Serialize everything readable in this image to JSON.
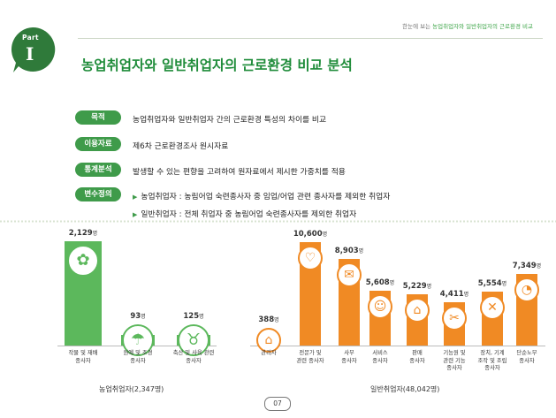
{
  "header": {
    "running_head_prefix": "한눈에 보는 ",
    "running_head_accent": "농업취업자와 일반취업자의 근로환경 비교",
    "part_label": "Part",
    "part_number": "I",
    "title": "농업취업자와 일반취업자의 근로환경 비교 분석"
  },
  "info_rows": [
    {
      "label": "목적",
      "text": "농업취업자와 일반취업자 간의 근로환경 특성의 차이를 비교"
    },
    {
      "label": "이용자료",
      "text": "제6차 근로환경조사 원시자료"
    },
    {
      "label": "통계분석",
      "text": "발생할 수 있는 편향을 고려하여 원자료에서 제시한 가중치를 적용"
    },
    {
      "label": "변수정의",
      "lines": [
        "농업취업자 : 농림어업 숙련종사자 중 임업/어업 관련 종사자를 제외한 취업자",
        "일반취업자 : 전체 취업자 중 농림어업 숙련종사자를 제외한 취업자"
      ]
    }
  ],
  "colors": {
    "agri": "#5cb85c",
    "general": "#f08a24",
    "accent": "#3f9b4a",
    "title": "#1f8c3a"
  },
  "chart_data": {
    "type": "bar",
    "unit": "명",
    "groups": [
      {
        "name": "농업취업자(2,347명)",
        "color": "#5cb85c",
        "categories": [
          {
            "label": [
              "작물 및 재배",
              "종사자"
            ],
            "value": 2129,
            "display": "2,129",
            "icon": "crop-icon"
          },
          {
            "label": [
              "원예 및 조경",
              "종사자"
            ],
            "value": 93,
            "display": "93",
            "icon": "watering-can-icon"
          },
          {
            "label": [
              "축산 및 사육 관련",
              "종사자"
            ],
            "value": 125,
            "display": "125",
            "icon": "cow-icon"
          }
        ]
      },
      {
        "name": "일반취업자(48,042명)",
        "color": "#f08a24",
        "categories": [
          {
            "label": [
              "관리자"
            ],
            "value": 388,
            "display": "388",
            "icon": "building-icon"
          },
          {
            "label": [
              "전문가 및",
              "관련 종사자"
            ],
            "value": 10600,
            "display": "10,600",
            "icon": "stethoscope-icon"
          },
          {
            "label": [
              "사무",
              "종사자"
            ],
            "value": 8903,
            "display": "8,903",
            "icon": "document-icon"
          },
          {
            "label": [
              "서비스",
              "종사자"
            ],
            "value": 5608,
            "display": "5,608",
            "icon": "service-icon"
          },
          {
            "label": [
              "판매",
              "종사자"
            ],
            "value": 5229,
            "display": "5,229",
            "icon": "shop-icon"
          },
          {
            "label": [
              "기능원 및",
              "관련 기능",
              "종사자"
            ],
            "value": 4411,
            "display": "4,411",
            "icon": "craft-icon"
          },
          {
            "label": [
              "장치, 기계",
              "조작 및 조립",
              "종사자"
            ],
            "value": 5554,
            "display": "5,554",
            "icon": "tools-icon"
          },
          {
            "label": [
              "단순노무",
              "종사자"
            ],
            "value": 7349,
            "display": "7,349",
            "icon": "gauge-icon"
          }
        ]
      }
    ]
  },
  "footer": {
    "page_number": "07"
  }
}
